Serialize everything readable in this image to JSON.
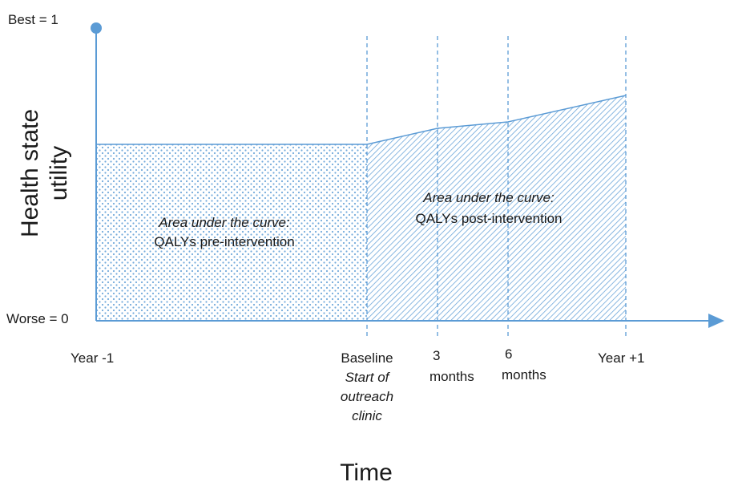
{
  "y_axis": {
    "title_line1": "Health state",
    "title_line2": "utility",
    "top_label": "Best = 1",
    "bottom_label": "Worse = 0"
  },
  "x_axis": {
    "title": "Time",
    "ticks": {
      "year_minus_1": "Year -1",
      "baseline": "Baseline",
      "baseline_sub1": "Start of",
      "baseline_sub2": "outreach",
      "baseline_sub3": "clinic",
      "m3_line1": "3",
      "m3_line2": "months",
      "m6_line1": "6",
      "m6_line2": "months",
      "year_plus_1": "Year +1"
    }
  },
  "regions": {
    "pre": {
      "heading": "Area under the curve:",
      "text": "QALYs pre-intervention"
    },
    "post": {
      "heading": "Area under the curve:",
      "text": "QALYs post-intervention"
    }
  },
  "colors": {
    "line": "#5b9bd5",
    "axis": "#5b9bd5",
    "fill_dots": "#5b9bd5",
    "fill_hatch": "#5b9bd5",
    "divider": "#5b9bd5"
  }
}
